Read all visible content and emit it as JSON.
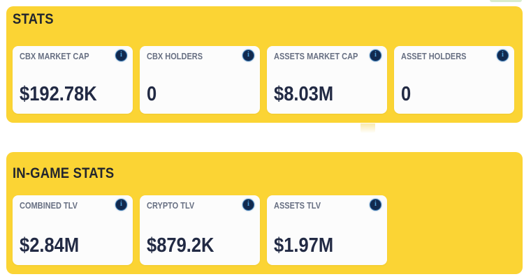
{
  "colors": {
    "section_bg": "#fbd434",
    "card_bg": "#fcfcfc",
    "title_text": "#23262e",
    "label_text": "#687083",
    "value_text": "#222a44",
    "info_icon_bg": "#12294e",
    "info_icon_ring": "#2e6ca8",
    "info_icon_glyph_color": "#4d9ed9",
    "artifact_pale_yellow": "#f9e9ac",
    "artifact_mint": "#d9eccd"
  },
  "info_icon_glyph": "i",
  "sections": [
    {
      "title": "STATS",
      "cards": [
        {
          "label": "CBX MARKET CAP",
          "value": "$192.78K"
        },
        {
          "label": "CBX HOLDERS",
          "value": "0"
        },
        {
          "label": "ASSETS MARKET CAP",
          "value": "$8.03M"
        },
        {
          "label": "ASSET HOLDERS",
          "value": "0"
        }
      ]
    },
    {
      "title": "IN-GAME STATS",
      "cards": [
        {
          "label": "COMBINED TLV",
          "value": "$2.84M"
        },
        {
          "label": "CRYPTO TLV",
          "value": "$879.2K"
        },
        {
          "label": "ASSETS TLV",
          "value": "$1.97M"
        }
      ]
    }
  ]
}
